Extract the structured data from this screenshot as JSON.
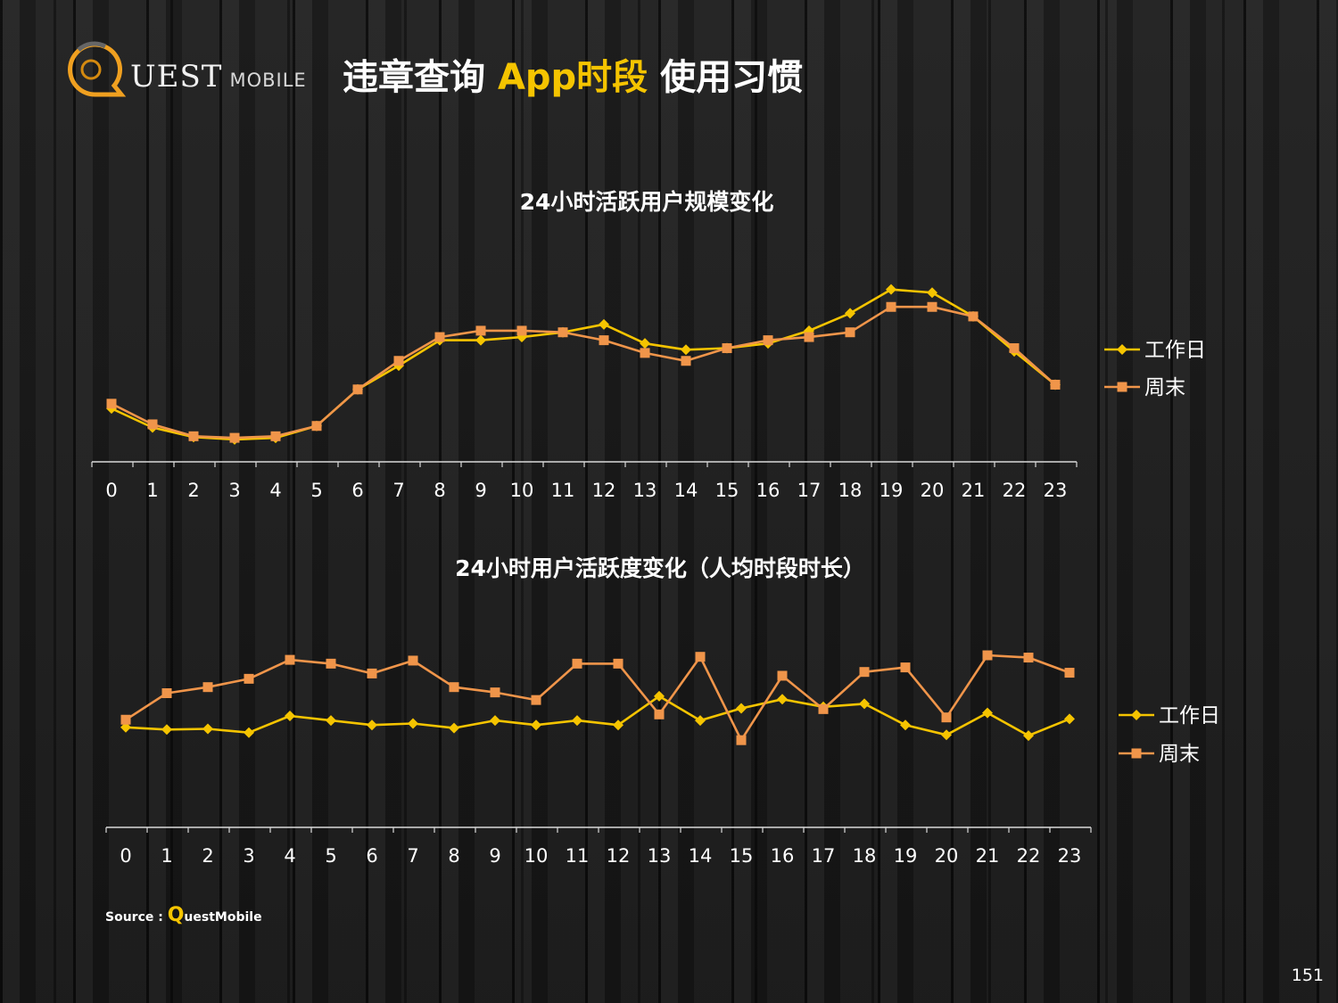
{
  "header": {
    "logo_text": "UEST",
    "logo_mobile": "MOBILE",
    "title_part1": "违章查询 ",
    "title_part2": "App时段",
    "title_part3": " 使用习惯",
    "accent_color": "#f5c400"
  },
  "chart_data": [
    {
      "type": "line",
      "title": "24小时活跃用户规模变化",
      "xlabel": "",
      "ylabel": "",
      "categories": [
        "0",
        "1",
        "2",
        "3",
        "4",
        "5",
        "6",
        "7",
        "8",
        "9",
        "10",
        "11",
        "12",
        "13",
        "14",
        "15",
        "16",
        "17",
        "18",
        "19",
        "20",
        "21",
        "22",
        "23"
      ],
      "ylim": [
        0,
        100
      ],
      "grid": false,
      "legend": "right",
      "series": [
        {
          "name": "工作日",
          "color": "#f5c400",
          "marker": "diamond",
          "values": [
            28,
            16,
            10,
            8.5,
            9.5,
            17,
            40,
            55,
            71,
            71,
            73,
            76,
            81,
            69,
            65,
            66,
            69,
            77,
            88,
            103,
            101,
            86,
            64,
            43
          ]
        },
        {
          "name": "周末",
          "color": "#f0954a",
          "marker": "square",
          "values": [
            31,
            18,
            10.5,
            9.5,
            10.5,
            17,
            40,
            58,
            73,
            77,
            77,
            76,
            71,
            63,
            58,
            66,
            71,
            73,
            76,
            92,
            92,
            86,
            66,
            43
          ]
        }
      ]
    },
    {
      "type": "line",
      "title": "24小时用户活跃度变化（人均时段时长）",
      "xlabel": "",
      "ylabel": "",
      "categories": [
        "0",
        "1",
        "2",
        "3",
        "4",
        "5",
        "6",
        "7",
        "8",
        "9",
        "10",
        "11",
        "12",
        "13",
        "14",
        "15",
        "16",
        "17",
        "18",
        "19",
        "20",
        "21",
        "22",
        "23"
      ],
      "ylim": [
        0,
        100
      ],
      "grid": false,
      "legend": "right",
      "series": [
        {
          "name": "工作日",
          "color": "#f5c400",
          "marker": "diamond",
          "values": [
            42.5,
            41,
            41.5,
            39,
            50,
            47,
            44,
            45,
            42,
            47,
            44,
            47,
            44,
            63,
            47,
            55,
            61,
            56,
            58,
            44,
            37.5,
            52,
            37,
            48
          ]
        },
        {
          "name": "周末",
          "color": "#f0954a",
          "marker": "square",
          "values": [
            47.5,
            65,
            69,
            74.5,
            87,
            84.5,
            78,
            86.5,
            69,
            65.5,
            60.5,
            84.5,
            84.5,
            51,
            89,
            34,
            76.5,
            54.5,
            79,
            82,
            49,
            90,
            88.5,
            78.5
          ]
        }
      ]
    }
  ],
  "footer": {
    "source_label": "Source :",
    "source_q": "Q",
    "source_rest": "uestMobile",
    "page_number": "151"
  }
}
